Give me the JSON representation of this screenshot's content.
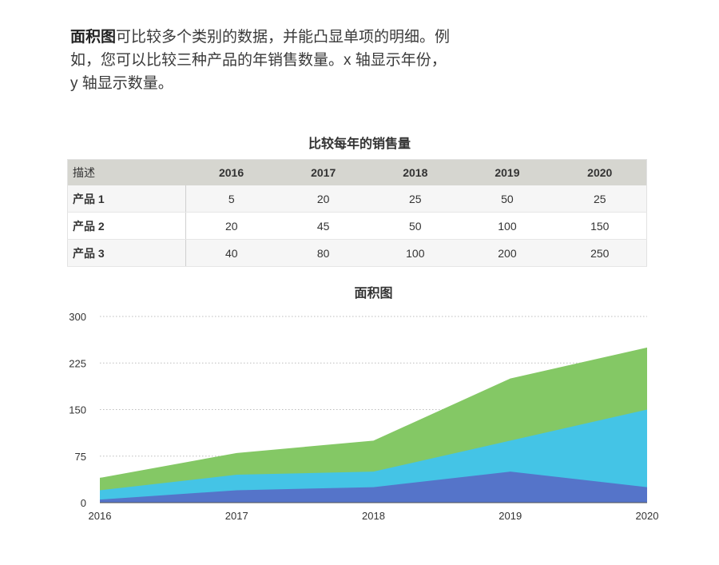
{
  "intro": {
    "bold": "面积图",
    "line1": "可比较多个类别的数据，并能凸显单项的明细。例",
    "line2": "如，您可以比较三种产品的年销售数量。x 轴显示年份，",
    "line3": "y 轴显示数量。"
  },
  "table": {
    "title": "比较每年的销售量",
    "header_label": "描述",
    "years": [
      "2016",
      "2017",
      "2018",
      "2019",
      "2020"
    ],
    "rows": [
      {
        "label": "产品 1",
        "values": [
          "5",
          "20",
          "25",
          "50",
          "25"
        ]
      },
      {
        "label": "产品 2",
        "values": [
          "20",
          "45",
          "50",
          "100",
          "150"
        ]
      },
      {
        "label": "产品 3",
        "values": [
          "40",
          "80",
          "100",
          "200",
          "250"
        ]
      }
    ]
  },
  "colors": {
    "product1": "#5574c9",
    "product2": "#44c4e6",
    "product3": "#84c865",
    "grid": "#bdbdbd"
  },
  "chart_data": {
    "type": "area",
    "title": "面积图",
    "categories": [
      "2016",
      "2017",
      "2018",
      "2019",
      "2020"
    ],
    "series": [
      {
        "name": "产品 1",
        "values": [
          5,
          20,
          25,
          50,
          25
        ]
      },
      {
        "name": "产品 2",
        "values": [
          20,
          45,
          50,
          100,
          150
        ]
      },
      {
        "name": "产品 3",
        "values": [
          40,
          80,
          100,
          200,
          250
        ]
      }
    ],
    "yticks": [
      "0",
      "75",
      "150",
      "225",
      "300"
    ],
    "ylim": [
      0,
      300
    ],
    "grid": true,
    "overlapping": true
  }
}
